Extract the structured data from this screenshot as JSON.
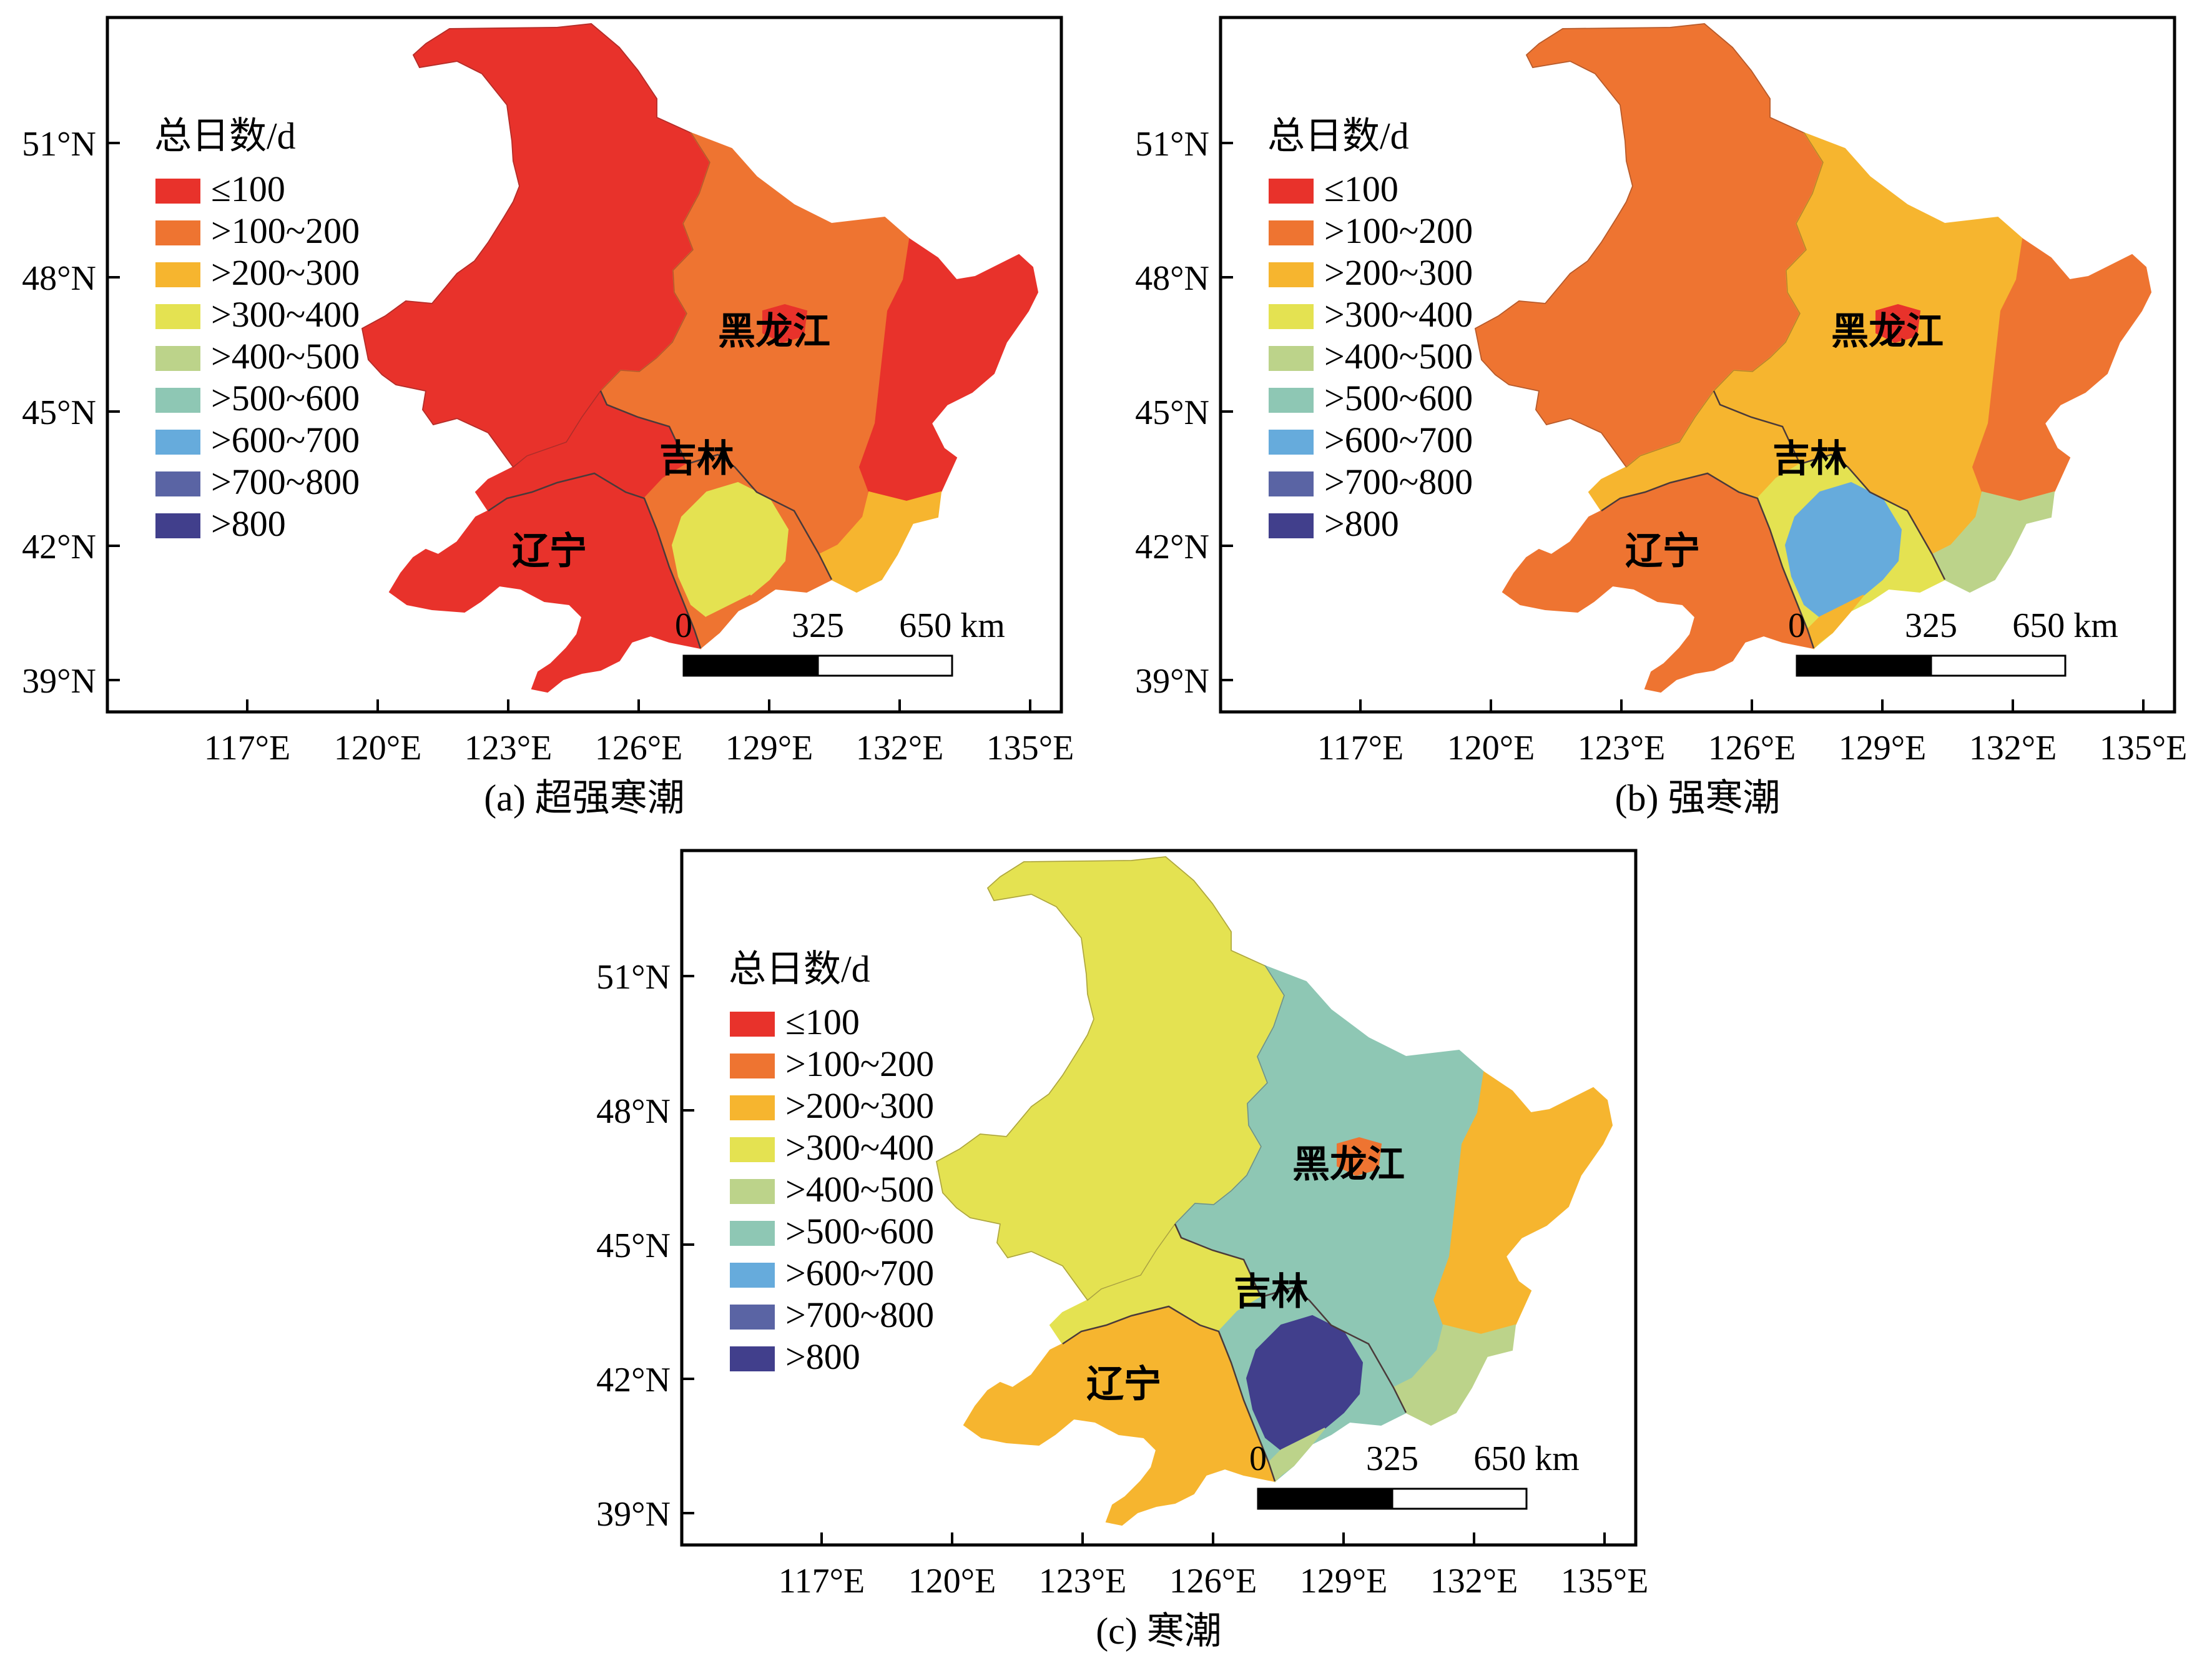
{
  "figure": {
    "x_ticks": [
      "117°E",
      "120°E",
      "123°E",
      "126°E",
      "129°E",
      "132°E",
      "135°E"
    ],
    "y_ticks": [
      "51°N",
      "48°N",
      "45°N",
      "42°N",
      "39°N"
    ],
    "legend": {
      "title": "总日数/d",
      "items": [
        {
          "label": "≤100",
          "color": "#e8322b"
        },
        {
          "label": ">100~200",
          "color": "#ee7431"
        },
        {
          "label": ">200~300",
          "color": "#f6b52f"
        },
        {
          "label": ">300~400",
          "color": "#e4e251"
        },
        {
          "label": ">400~500",
          "color": "#bcd38a"
        },
        {
          "label": ">500~600",
          "color": "#8ec7b4"
        },
        {
          "label": ">600~700",
          "color": "#66abdc"
        },
        {
          "label": ">700~800",
          "color": "#5a64a4"
        },
        {
          "label": ">800",
          "color": "#413f8c"
        }
      ]
    },
    "scale_bar": {
      "labels": [
        "0",
        "325",
        "650 km"
      ]
    },
    "provinces": [
      "黑龙江",
      "吉林",
      "辽宁"
    ],
    "panels": [
      {
        "id": "a",
        "caption": "(a) 超强寒潮",
        "fills": {
          "hlj_nw": 0,
          "hlj_c": 1,
          "hlj_e": 0,
          "jilin_w": 0,
          "jilin_c": 1,
          "jilin_se": 2,
          "jilin_core": 3,
          "ln_w": 0,
          "ln_e": 1,
          "hlj_lake": 0
        }
      },
      {
        "id": "b",
        "caption": "(b) 强寒潮",
        "fills": {
          "hlj_nw": 1,
          "hlj_c": 2,
          "hlj_e": 1,
          "jilin_w": 2,
          "jilin_c": 3,
          "jilin_se": 4,
          "jilin_core": 6,
          "ln_w": 1,
          "ln_e": 2,
          "hlj_lake": 0
        }
      },
      {
        "id": "c",
        "caption": "(c) 寒潮",
        "fills": {
          "hlj_nw": 3,
          "hlj_c": 5,
          "hlj_e": 2,
          "jilin_w": 3,
          "jilin_c": 5,
          "jilin_se": 4,
          "jilin_core": 8,
          "ln_w": 2,
          "ln_e": 4,
          "hlj_lake": 1
        }
      }
    ]
  }
}
